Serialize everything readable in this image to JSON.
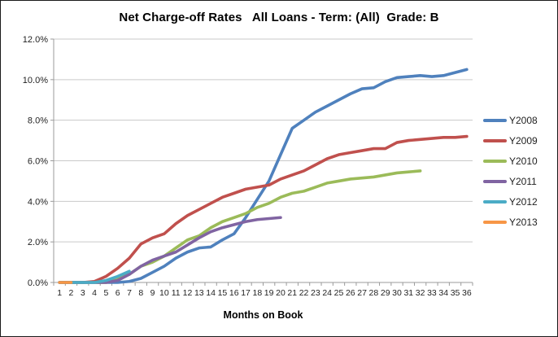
{
  "window": {
    "background": "#FFFFFF",
    "border_color": "#1A1A1A"
  },
  "chart_data": {
    "type": "line",
    "title": "Net Charge-off Rates   All Loans - Term: (All)  Grade: B",
    "xlabel": "Months on Book",
    "ylabel": "",
    "x": [
      1,
      2,
      3,
      4,
      5,
      6,
      7,
      8,
      9,
      10,
      11,
      12,
      13,
      14,
      15,
      16,
      17,
      18,
      19,
      20,
      21,
      22,
      23,
      24,
      25,
      26,
      27,
      28,
      29,
      30,
      31,
      32,
      33,
      34,
      35,
      36
    ],
    "y_ticks": [
      "0.0%",
      "2.0%",
      "4.0%",
      "6.0%",
      "8.0%",
      "10.0%",
      "12.0%"
    ],
    "y_tick_step": 2,
    "ylim": [
      0,
      12
    ],
    "grid": true,
    "legend_position": "right",
    "colors": {
      "grid": "#C9C9C9",
      "axis": "#9B9B9B",
      "text": "#1F1F1F"
    },
    "series": [
      {
        "name": "Y2008",
        "color": "#4F81BD",
        "values": [
          0,
          0,
          0,
          0,
          0,
          0,
          0.05,
          0.2,
          0.5,
          0.8,
          1.2,
          1.5,
          1.7,
          1.75,
          2.1,
          2.4,
          3.2,
          4.1,
          5.0,
          6.3,
          7.6,
          8.0,
          8.4,
          8.7,
          9.0,
          9.3,
          9.55,
          9.6,
          9.9,
          10.1,
          10.15,
          10.2,
          10.15,
          10.2,
          10.35,
          10.5
        ]
      },
      {
        "name": "Y2009",
        "color": "#C0504D",
        "values": [
          0,
          0,
          0,
          0.05,
          0.3,
          0.7,
          1.2,
          1.9,
          2.2,
          2.4,
          2.9,
          3.3,
          3.6,
          3.9,
          4.2,
          4.4,
          4.6,
          4.7,
          4.8,
          5.1,
          5.3,
          5.5,
          5.8,
          6.1,
          6.3,
          6.4,
          6.5,
          6.6,
          6.6,
          6.9,
          7.0,
          7.05,
          7.1,
          7.15,
          7.15,
          7.2
        ]
      },
      {
        "name": "Y2010",
        "color": "#9BBB59",
        "values": [
          0,
          0,
          0,
          0,
          0,
          0.2,
          0.4,
          0.8,
          1.0,
          1.3,
          1.7,
          2.1,
          2.3,
          2.7,
          3.0,
          3.2,
          3.4,
          3.7,
          3.9,
          4.2,
          4.4,
          4.5,
          4.7,
          4.9,
          5.0,
          5.1,
          5.15,
          5.2,
          5.3,
          5.4,
          5.45,
          5.5
        ]
      },
      {
        "name": "Y2011",
        "color": "#8064A2",
        "values": [
          0,
          0,
          0,
          0,
          0,
          0.1,
          0.4,
          0.8,
          1.1,
          1.3,
          1.5,
          1.85,
          2.2,
          2.5,
          2.7,
          2.85,
          3.0,
          3.1,
          3.15,
          3.2
        ]
      },
      {
        "name": "Y2012",
        "color": "#4BACC6",
        "values": [
          0,
          0,
          0,
          0,
          0.1,
          0.3,
          0.55
        ]
      },
      {
        "name": "Y2013",
        "color": "#F79646",
        "values": [
          0,
          0
        ]
      }
    ]
  }
}
